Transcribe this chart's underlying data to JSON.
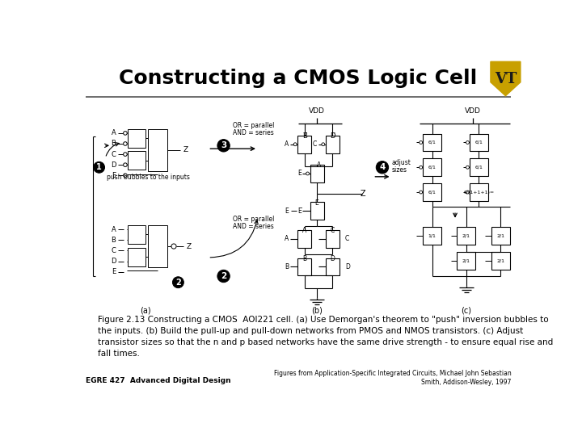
{
  "title": "Constructing a CMOS Logic Cell",
  "title_fontsize": 18,
  "title_color": "#000000",
  "bg_color": "#ffffff",
  "header_line_color": "#888888",
  "caption_text": "Figure 2.13 Constructing a CMOS  AOI221 cell. (a) Use Demorgan's theorem to \"push\" inversion bubbles to\nthe inputs. (b) Build the pull-up and pull-down networks from PMOS and NMOS transistors. (c) Adjust\ntransistor sizes so that the n and p based networks have the same drive strength - to ensure equal rise and\nfall times.",
  "caption_fontsize": 7.5,
  "footer_left": "EGRE 427  Advanced Digital Design",
  "footer_right": "Figures from Application-Specific Integrated Circuits, Michael John Sebastian\nSmith, Addison-Wesley, 1997",
  "footer_fontsize": 6.5,
  "logo_gold": "#c8a000",
  "logo_black": "#1a1a1a"
}
